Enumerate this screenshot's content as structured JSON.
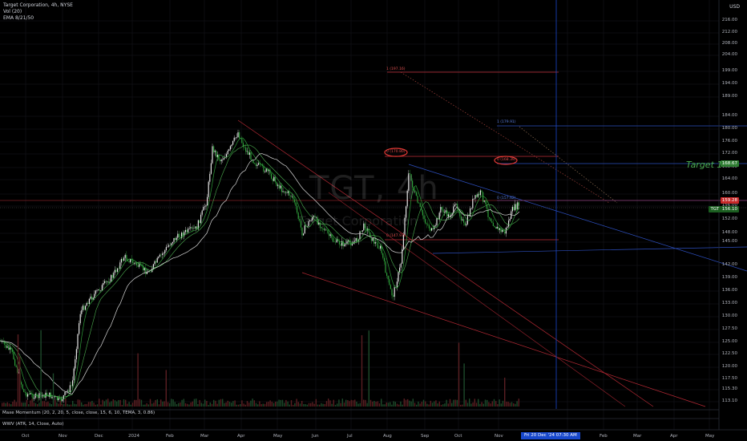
{
  "legend": {
    "symbol_line": "Target Corporation, 4h, NYSE",
    "vol_line": "Vol (20)",
    "ema_line": "EMA 8/21/50"
  },
  "indicators": {
    "momentum": "Maxe Momentum (20, 2, 20, 5, close, close, 15, 6, 10, TEMA, 3, 0.86)",
    "wwv": "WWV (ATR, 14, Close, Auto)"
  },
  "currency": "USD",
  "watermark": {
    "ticker": "TGT, 4h",
    "name": "Target Corporation"
  },
  "y_axis": [
    "216.00",
    "212.00",
    "208.00",
    "204.00",
    "199.00",
    "194.00",
    "189.00",
    "184.00",
    "180.00",
    "176.00",
    "172.00",
    "168.00",
    "164.00",
    "160.00",
    "156.00",
    "152.00",
    "148.00",
    "145.00",
    "142.00",
    "139.00",
    "136.00",
    "133.00",
    "130.00",
    "127.50",
    "125.00",
    "122.50",
    "120.00",
    "117.50",
    "115.30",
    "113.10"
  ],
  "price_tags": {
    "target": "168.67",
    "red_level": "159.28",
    "tgt_label": "TGT",
    "tgt_price": "156.10"
  },
  "x_axis": [
    "Oct",
    "Nov",
    "Dec",
    "2024",
    "Feb",
    "Mar",
    "Apr",
    "May",
    "Jun",
    "Jul",
    "Aug",
    "Sep",
    "Oct",
    "Nov",
    "Jan",
    "Feb",
    "Mar",
    "Apr",
    "May"
  ],
  "crosshair_date": "Fri 20 Dec '24  07:30 AM",
  "target_label": "Target 1",
  "fib_annotations": {
    "top_red": "1 (197.16)",
    "mid_red": "0 (170.80)",
    "mid_red2": "0 (168.39)",
    "top_blue": "1 (179.91)",
    "blue_low": "0 (157.62)",
    "red_low": "0 (147.97)"
  },
  "colors": {
    "background": "#000000",
    "up": "#26a69a",
    "green": "#4caf50",
    "red": "#f23645",
    "blue": "#2962ff",
    "crosshair": "#1848cc"
  }
}
